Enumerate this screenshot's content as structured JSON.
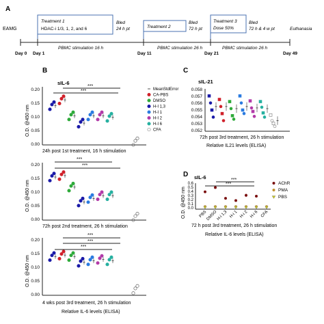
{
  "colors": {
    "ca_pbs": "#d0202a",
    "dmso": "#2eaa3a",
    "hi13": "#1a1aa8",
    "hi1": "#2a7be0",
    "hi2": "#b23aa8",
    "hi6": "#26b0a0",
    "cfa": "#909090",
    "achr": "#7a1010",
    "pma": "#c09030",
    "pbs_d": "#c8c820",
    "axis": "#222222"
  },
  "panel_a": {
    "letter": "A",
    "eamg": "EAMG",
    "boxes": [
      {
        "lines": [
          "Treatment 1",
          "HDAC-i 1/3, 1, 2, and 6"
        ]
      },
      {
        "lines": [
          "Treatment 2"
        ]
      },
      {
        "lines": [
          "Treatment 3",
          "Dose 50%"
        ]
      }
    ],
    "bled": [
      {
        "lines": [
          "Bled",
          "24 h pt"
        ]
      },
      {
        "lines": [
          "Bled",
          "72 h pt"
        ]
      },
      {
        "lines": [
          "Bled",
          "72 h & 4 w pt"
        ]
      }
    ],
    "euthanasia": "Euthanasia",
    "stim": [
      "PBMC stimulation 16 h",
      "PBMC stimulation 26 h",
      "PBMC stimulation 26 h"
    ],
    "days": [
      "Day 0",
      "Day 1",
      "Day 11",
      "Day 21",
      "Day 49"
    ]
  },
  "chart_data": [
    {
      "id": "B1",
      "type": "scatter",
      "panel_letter": "B",
      "title": "sIL-6",
      "ylabel": "O.D. @450 nm",
      "xlabel": "24h post  1st treatment, 16 h stimulation",
      "ylim": [
        0,
        0.2
      ],
      "yticks": [
        "0.20",
        "0.15",
        "0.10",
        "0.05",
        "0.00"
      ],
      "groups": [
        "CA-PBS",
        "CA-PBS",
        "DMSO",
        "H-I 1,3",
        "H-I 1",
        "H-I 2",
        "H-I 6",
        "CFA"
      ],
      "means": [
        0.135,
        0.155,
        0.1,
        0.075,
        0.1,
        0.1,
        0.095,
        0.01
      ],
      "sig": [
        "***",
        "***"
      ]
    },
    {
      "id": "B2",
      "type": "scatter",
      "ylabel": "O.D. @450 nm",
      "xlabel": "72h post 2nd treatment, 26 h stimulation",
      "ylim": [
        0,
        0.2
      ],
      "yticks": [
        "0.20",
        "0.15",
        "0.10",
        "0.05",
        "0.00"
      ],
      "groups": [
        "CA-PBS",
        "CA-PBS",
        "DMSO",
        "H-I 1,3",
        "H-I 1",
        "H-I 2",
        "H-I 6",
        "CFA"
      ],
      "means": [
        0.15,
        0.155,
        0.115,
        0.063,
        0.075,
        0.085,
        0.085,
        0.01
      ],
      "sig": [
        "***",
        "***"
      ]
    },
    {
      "id": "B3",
      "type": "scatter",
      "ylabel": "O.D. @450 nm",
      "xlabel": "4 wks post 3rd treatment, 26 h stimulation",
      "xtitle": "Relative IL-6 levels (ELISA)",
      "ylim": [
        0,
        0.2
      ],
      "yticks": [
        "0.20",
        "0.15",
        "0.10",
        "0.05",
        "0.00"
      ],
      "groups": [
        "CA-PBS",
        "CA-PBS",
        "DMSO",
        "H-I 1,3",
        "H-I 1",
        "H-I 2",
        "H-I 6",
        "CFA"
      ],
      "means": [
        0.135,
        0.14,
        0.135,
        0.115,
        0.12,
        0.125,
        0.12,
        0.02
      ],
      "sig": [
        "***",
        "***",
        "***"
      ]
    },
    {
      "id": "C",
      "type": "scatter",
      "panel_letter": "C",
      "title": "sIL-21",
      "xlabel": "72h post 3rd treatment, 26 h stimulation",
      "xtitle": "Relative IL21 levels (ELISA)",
      "ylim": [
        0.052,
        0.058
      ],
      "yticks": [
        "0.058",
        "0.057",
        "0.056",
        "0.055",
        "0.054",
        "0.053",
        "0.052"
      ],
      "groups": [
        "CA-PBS",
        "DMSO",
        "H-I 1,3",
        "H-I 1",
        "H-I 2",
        "H-I 6",
        "CFA"
      ],
      "means": [
        0.0555,
        0.0555,
        0.0552,
        0.0555,
        0.0553,
        0.0552,
        0.0535
      ]
    },
    {
      "id": "D",
      "type": "scatter",
      "panel_letter": "D",
      "title": "sIL-6",
      "ylabel": "O.D. @450 nm",
      "xlabel": "72 h post 3rd treatment, 26 h stimulation",
      "xtitle": "Relative IL-6 levels (ELISA)",
      "ylim": [
        0,
        0.6
      ],
      "yticks": [
        "0.6",
        "0.5",
        "0.4",
        "0.3",
        "0.2",
        "0.1",
        "0.0"
      ],
      "categories": [
        "PBS",
        "DMSO",
        "H-i 1,3",
        "H-i 1",
        "H-i 2",
        "H-i 6",
        "CFA"
      ],
      "series": [
        {
          "name": "AChR",
          "values": [
            0.4,
            0.5,
            0.25,
            0.2,
            0.32,
            0.3,
            null
          ]
        },
        {
          "name": "PMA",
          "values": [
            0.06,
            0.06,
            0.06,
            0.06,
            0.06,
            0.06,
            0.06
          ]
        },
        {
          "name": "PBS",
          "values": [
            0.04,
            0.04,
            0.04,
            0.04,
            0.04,
            0.04,
            0.04
          ]
        }
      ],
      "sig": [
        "***",
        "***"
      ]
    }
  ],
  "legend_b": [
    "MeanStdError",
    "CA-PBS",
    "DMSO",
    "H-I 1,3",
    "H-I 1",
    "H-I 2",
    "H-I 6",
    "CFA"
  ]
}
